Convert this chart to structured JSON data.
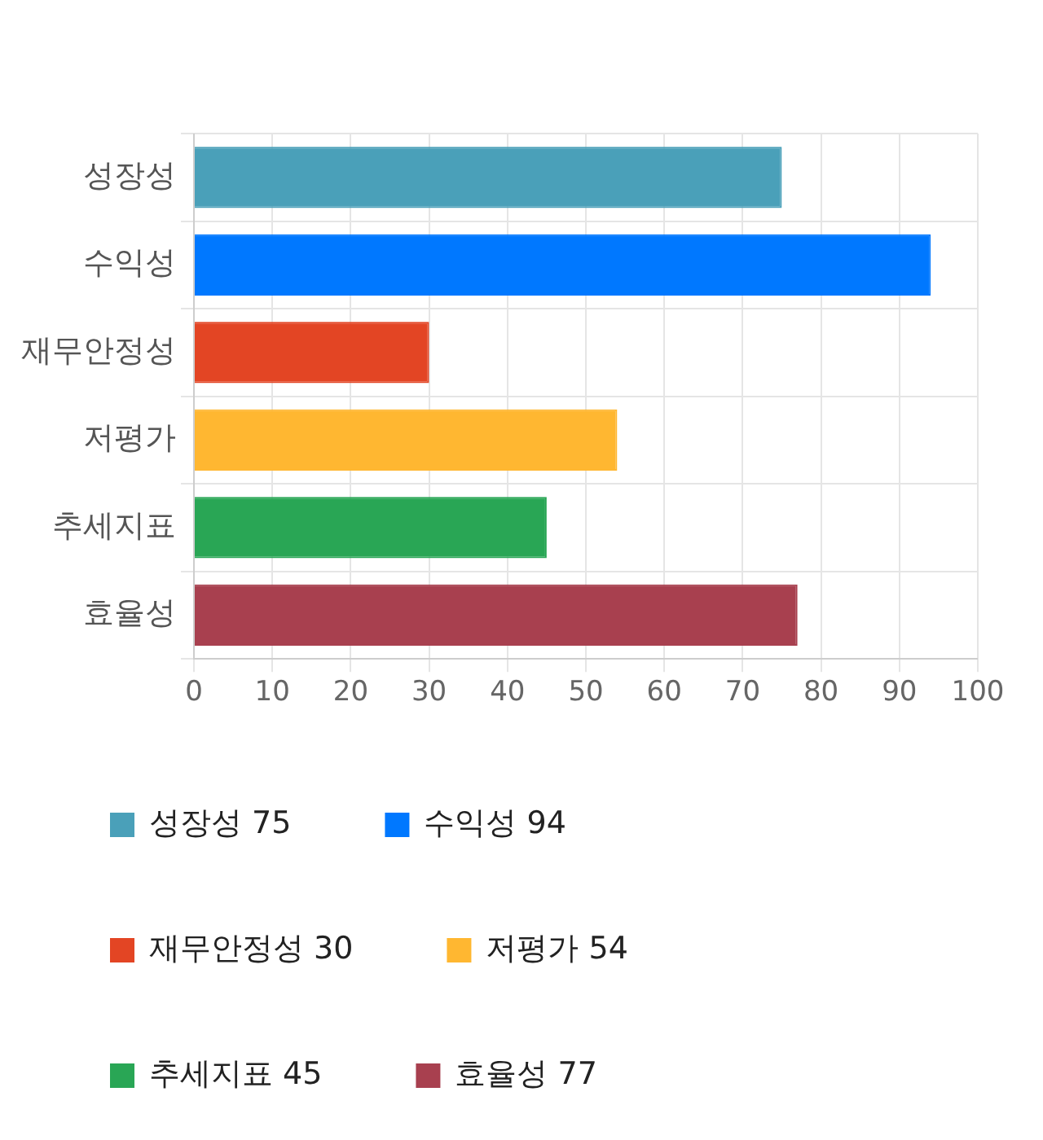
{
  "chart_data": {
    "type": "bar",
    "orientation": "horizontal",
    "stacked": true,
    "categories": [
      "성장성",
      "수익성",
      "재무안정성",
      "저평가",
      "추세지표",
      "효율성"
    ],
    "series": [
      {
        "name": "성장성 75",
        "color": "#4aa0b9",
        "values": [
          75,
          null,
          null,
          null,
          null,
          null
        ]
      },
      {
        "name": "수익성 94",
        "color": "#0078ff",
        "values": [
          null,
          94,
          null,
          null,
          null,
          null
        ]
      },
      {
        "name": "재무안정성 30",
        "color": "#e34524",
        "values": [
          null,
          null,
          30,
          null,
          null,
          null
        ]
      },
      {
        "name": "저평가 54",
        "color": "#ffb731",
        "values": [
          null,
          null,
          null,
          54,
          null,
          null
        ]
      },
      {
        "name": "추세지표 45",
        "color": "#29a655",
        "values": [
          null,
          null,
          null,
          null,
          45,
          null
        ]
      },
      {
        "name": "효율성 77",
        "color": "#a8404f",
        "values": [
          null,
          null,
          null,
          null,
          null,
          77
        ]
      }
    ],
    "xlim": [
      0,
      100
    ],
    "xticks": [
      0,
      10,
      20,
      30,
      40,
      50,
      60,
      70,
      80,
      90,
      100
    ],
    "grid": true,
    "legend": "bottom"
  }
}
